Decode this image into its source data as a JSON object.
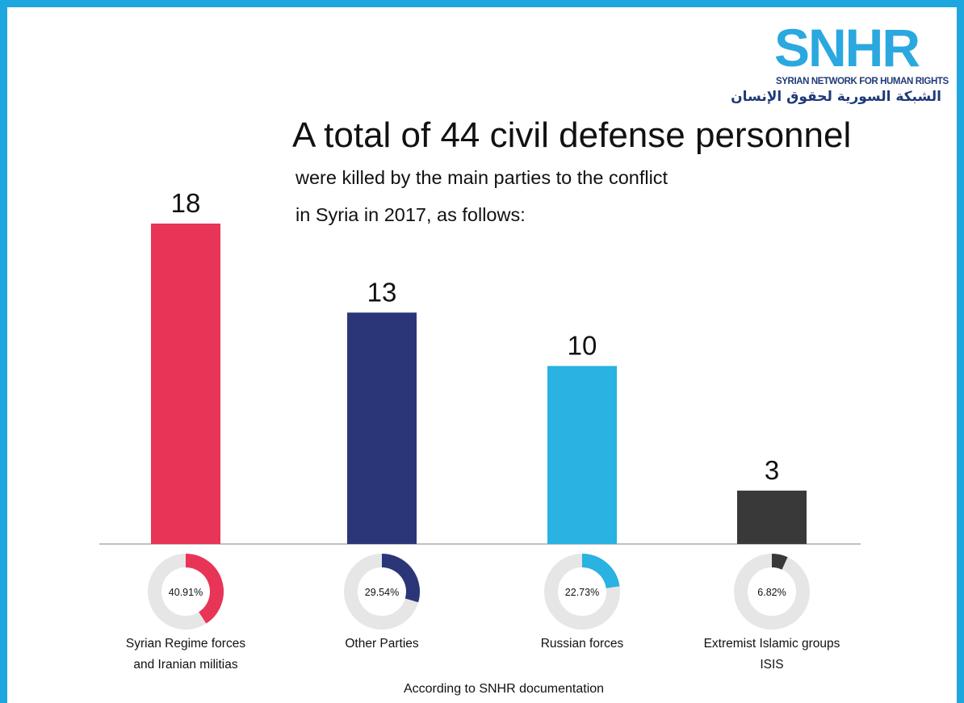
{
  "logo": {
    "text": "SNHR",
    "english": "SYRIAN NETWORK FOR HUMAN RIGHTS",
    "arabic": "الشبكة السورية لحقوق الإنسان"
  },
  "title": "A total of 44 civil defense personnel",
  "subtitle_lines": [
    "were killed by the main parties to the conflict",
    "in Syria in 2017, as follows:"
  ],
  "source": "According to SNHR documentation",
  "colors": {
    "frame": "#1ea6df",
    "regime": "#e83457",
    "other": "#2b3679",
    "russian": "#29b2e2",
    "isis": "#383938",
    "ring": "#e6e6e6"
  },
  "chart_data": {
    "type": "bar",
    "categories": [
      [
        "Syrian Regime forces",
        "and Iranian militias"
      ],
      [
        "Other Parties"
      ],
      [
        "Russian forces"
      ],
      [
        "Extremist Islamic groups",
        "ISIS"
      ]
    ],
    "values": [
      18,
      13,
      10,
      3
    ],
    "value_labels": [
      "18",
      "13",
      "10",
      "3"
    ],
    "percentages": [
      40.91,
      29.54,
      22.73,
      6.82
    ],
    "percentage_labels": [
      "40.91%",
      "29.54%",
      "22.73%",
      "6.82%"
    ],
    "bar_colors": [
      "#e83457",
      "#2b3679",
      "#29b2e2",
      "#383938"
    ],
    "ylim": [
      0,
      18
    ],
    "grid": false,
    "legend": false
  }
}
